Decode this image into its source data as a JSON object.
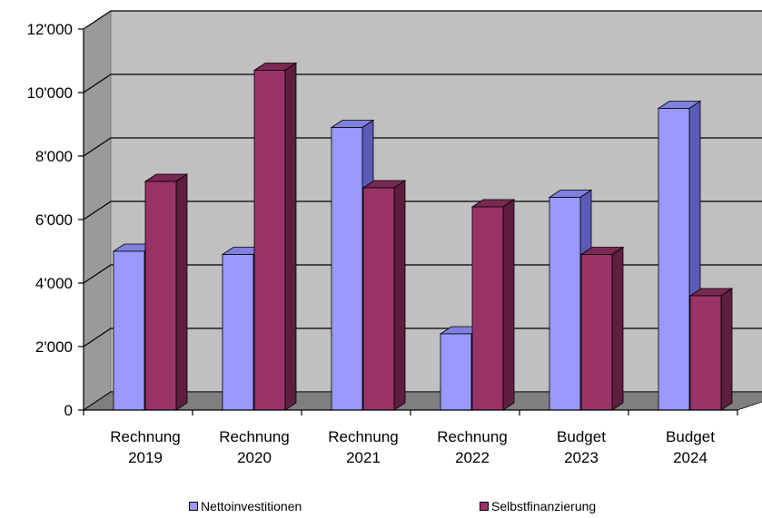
{
  "chart_data": {
    "type": "bar",
    "style": "3d-clustered-column",
    "categories": [
      "Rechnung 2019",
      "Rechnung 2020",
      "Rechnung 2021",
      "Rechnung 2022",
      "Budget 2023",
      "Budget 2024"
    ],
    "category_lines": [
      [
        "Rechnung",
        "2019"
      ],
      [
        "Rechnung",
        "2020"
      ],
      [
        "Rechnung",
        "2021"
      ],
      [
        "Rechnung",
        "2022"
      ],
      [
        "Budget",
        "2023"
      ],
      [
        "Budget",
        "2024"
      ]
    ],
    "series": [
      {
        "name": "Nettoinvestitionen",
        "values": [
          5000,
          4900,
          8900,
          2400,
          6700,
          9500
        ],
        "color": "#9999ff",
        "side_color": "#5c5cb8",
        "top_color": "#8080dd"
      },
      {
        "name": "Selbstfinanzierung",
        "values": [
          7200,
          10700,
          7000,
          6400,
          4900,
          3600
        ],
        "color": "#993366",
        "side_color": "#5e1f3f",
        "top_color": "#7a2952"
      }
    ],
    "ylim": [
      0,
      12000
    ],
    "yticks": [
      0,
      2000,
      4000,
      6000,
      8000,
      10000,
      12000
    ],
    "ytick_labels": [
      "0",
      "2'000",
      "4'000",
      "6'000",
      "8'000",
      "10'000",
      "12'000"
    ],
    "grid": true,
    "legend_position": "bottom",
    "title": "",
    "xlabel": "",
    "ylabel": ""
  }
}
